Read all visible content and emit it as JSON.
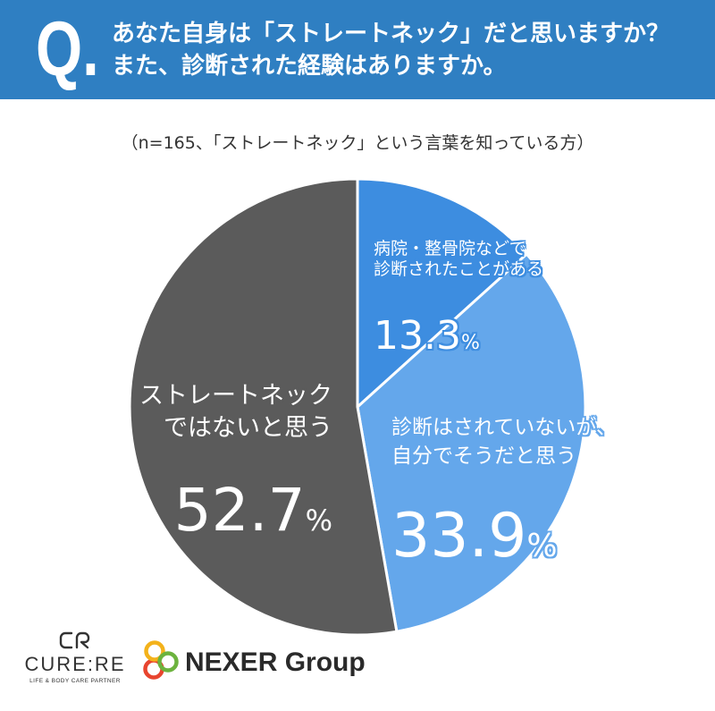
{
  "header": {
    "q_label": "Q.",
    "background_color": "#2f7fc2"
  },
  "chart_data": {
    "type": "pie",
    "title": "あなた自身は「ストレートネック」だと思いますか？\nまた、診断された経験はありますか。",
    "subtitle": "（n=165、「ストレートネック」という言葉を知っている方）",
    "categories": [
      "病院・整骨院などで\n診断されたことがある",
      "診断はされていないが、\n自分でそうだと思う",
      "ストレートネック\nではないと思う"
    ],
    "values": [
      13.3,
      33.9,
      52.7
    ],
    "unit": "%",
    "colors": [
      "#3d8de0",
      "#64a7eb",
      "#5b5b5b"
    ]
  },
  "logos": {
    "cure_re": {
      "icon": "cure-re-logo-icon",
      "name": "CURE:RE",
      "tagline": "LIFE & BODY CARE PARTNER"
    },
    "nexer": {
      "icon": "nexer-rings-icon",
      "name": "NEXER Group",
      "ring_colors": [
        "#e8452f",
        "#f3b21b",
        "#6cb33e"
      ]
    }
  }
}
